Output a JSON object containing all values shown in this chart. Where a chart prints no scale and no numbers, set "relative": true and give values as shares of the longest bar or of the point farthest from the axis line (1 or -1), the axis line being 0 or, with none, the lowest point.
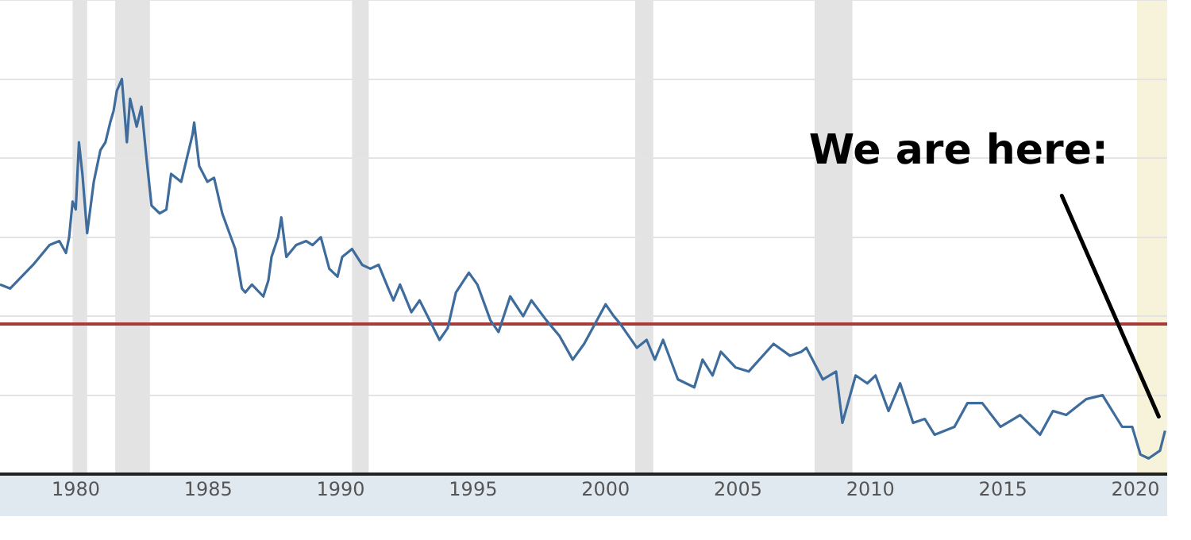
{
  "chart_data": {
    "type": "line",
    "relative": true,
    "grid": "y",
    "legend": false,
    "marker": "none",
    "line_style": "solid",
    "x": [
      1977.14,
      1977.52,
      1978.39,
      1979.01,
      1979.38,
      1979.63,
      1979.75,
      1979.88,
      1980.0,
      1980.12,
      1980.25,
      1980.43,
      1980.68,
      1980.93,
      1981.12,
      1981.3,
      1981.43,
      1981.55,
      1981.74,
      1981.93,
      1982.05,
      1982.3,
      1982.48,
      1982.67,
      1982.86,
      1983.17,
      1983.42,
      1983.6,
      1983.98,
      1984.41,
      1984.47,
      1984.66,
      1984.97,
      1985.22,
      1985.53,
      1986.02,
      1986.27,
      1986.4,
      1986.65,
      1987.08,
      1987.27,
      1987.39,
      1987.64,
      1987.76,
      1987.95,
      1988.32,
      1988.7,
      1988.94,
      1989.25,
      1989.57,
      1989.88,
      1990.06,
      1990.43,
      1990.81,
      1991.12,
      1991.43,
      1991.8,
      1991.99,
      1992.24,
      1992.67,
      1992.98,
      1993.73,
      1994.04,
      1994.35,
      1994.84,
      1995.16,
      1995.65,
      1995.96,
      1996.4,
      1996.89,
      1997.2,
      1997.76,
      1998.26,
      1998.76,
      1999.19,
      2000.0,
      2000.31,
      2000.56,
      2001.18,
      2001.55,
      2001.86,
      2002.17,
      2002.73,
      2003.35,
      2003.66,
      2004.04,
      2004.35,
      2004.91,
      2005.4,
      2006.34,
      2006.96,
      2007.39,
      2007.58,
      2008.2,
      2008.7,
      2008.94,
      2009.44,
      2009.88,
      2010.19,
      2010.68,
      2011.12,
      2011.61,
      2012.05,
      2012.42,
      2013.17,
      2013.66,
      2014.22,
      2014.91,
      2015.65,
      2016.4,
      2016.89,
      2017.39,
      2018.14,
      2018.76,
      2019.5,
      2019.88,
      2020.19,
      2020.5,
      2020.93,
      2021.12
    ],
    "series": [
      {
        "color": "#3e6c9c",
        "values": [
          0.48,
          0.47,
          0.53,
          0.58,
          0.59,
          0.56,
          0.6,
          0.69,
          0.67,
          0.84,
          0.76,
          0.61,
          0.74,
          0.82,
          0.84,
          0.89,
          0.92,
          0.97,
          1,
          0.84,
          0.95,
          0.88,
          0.93,
          0.8,
          0.68,
          0.66,
          0.67,
          0.76,
          0.74,
          0.86,
          0.89,
          0.78,
          0.74,
          0.75,
          0.66,
          0.57,
          0.47,
          0.46,
          0.48,
          0.45,
          0.49,
          0.55,
          0.6,
          0.65,
          0.55,
          0.58,
          0.59,
          0.58,
          0.6,
          0.52,
          0.5,
          0.55,
          0.57,
          0.53,
          0.52,
          0.53,
          0.47,
          0.44,
          0.48,
          0.41,
          0.44,
          0.34,
          0.37,
          0.46,
          0.51,
          0.48,
          0.39,
          0.36,
          0.45,
          0.4,
          0.44,
          0.39,
          0.35,
          0.29,
          0.33,
          0.43,
          0.4,
          0.38,
          0.32,
          0.34,
          0.29,
          0.34,
          0.24,
          0.22,
          0.29,
          0.25,
          0.31,
          0.27,
          0.26,
          0.33,
          0.3,
          0.31,
          0.32,
          0.24,
          0.26,
          0.13,
          0.25,
          0.23,
          0.25,
          0.16,
          0.23,
          0.13,
          0.14,
          0.1,
          0.12,
          0.18,
          0.18,
          0.12,
          0.15,
          0.1,
          0.16,
          0.15,
          0.19,
          0.2,
          0.12,
          0.12,
          0.05,
          0.04,
          0.06,
          0.11
        ]
      }
    ],
    "xlim": [
      1977.14,
      2021.2
    ],
    "xticks": [
      1980,
      1985,
      1990,
      1995,
      2000,
      2005,
      2010,
      2015,
      2020
    ],
    "ref_lines": [
      {
        "axis": "y",
        "value": 0.38,
        "color": "#a83a3a"
      }
    ],
    "bands": [
      {
        "axis": "x",
        "from": 1979.88,
        "to": 1980.43,
        "color": "#e3e3e3"
      },
      {
        "axis": "x",
        "from": 1981.49,
        "to": 1982.8,
        "color": "#e3e3e3"
      },
      {
        "axis": "x",
        "from": 1990.43,
        "to": 1991.06,
        "color": "#e3e3e3"
      },
      {
        "axis": "x",
        "from": 2001.12,
        "to": 2001.8,
        "color": "#e3e3e3"
      },
      {
        "axis": "x",
        "from": 2007.89,
        "to": 2009.32,
        "color": "#e3e3e3"
      },
      {
        "axis": "x",
        "from": 2020.06,
        "to": 2021.2,
        "color": "#f6f3da"
      }
    ],
    "annotations": [
      {
        "text": "We are here:",
        "x": 2021.0,
        "y": 0.13
      }
    ]
  }
}
